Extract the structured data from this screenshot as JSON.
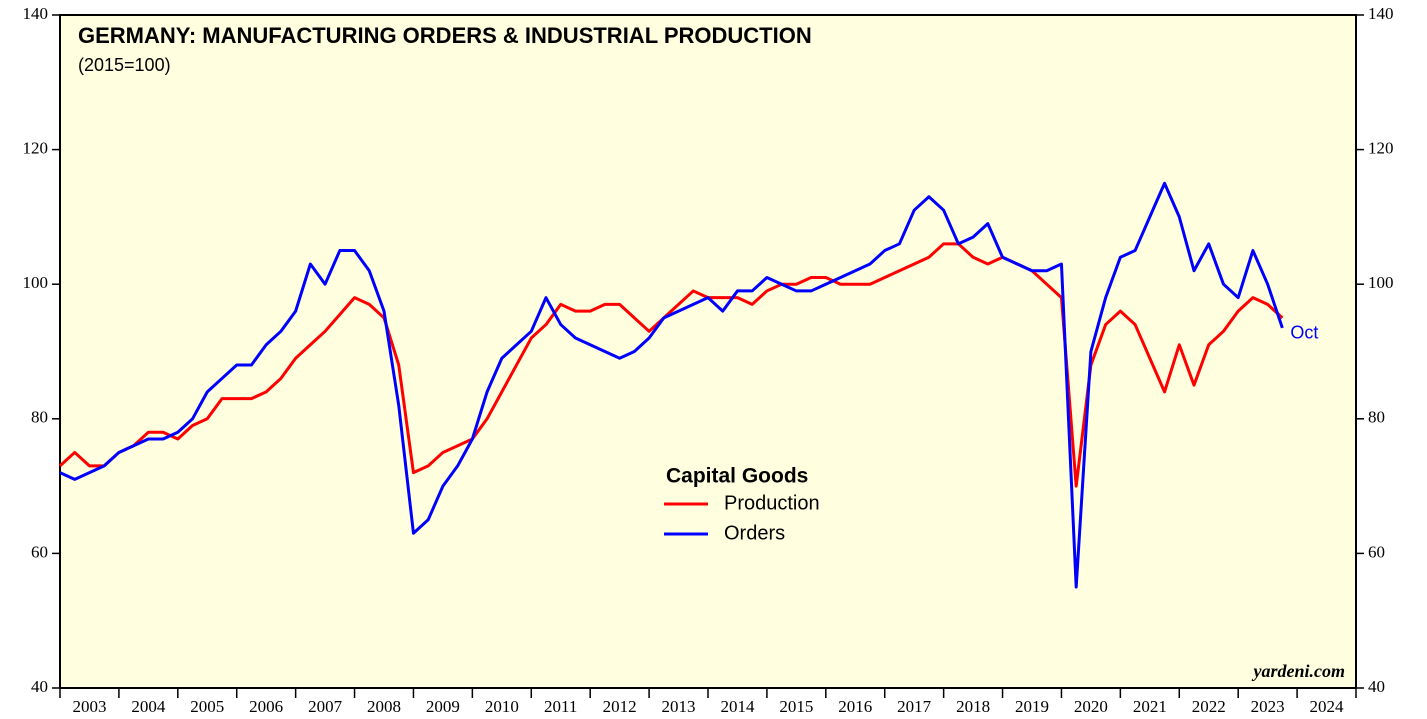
{
  "chart_data": {
    "type": "line",
    "title": "GERMANY: MANUFACTURING ORDERS & INDUSTRIAL PRODUCTION",
    "subtitle": "(2015=100)",
    "legend_title": "Capital Goods",
    "annotation": "Oct",
    "source": "yardeni.com",
    "x": [
      2003,
      2003.25,
      2003.5,
      2003.75,
      2004,
      2004.25,
      2004.5,
      2004.75,
      2005,
      2005.25,
      2005.5,
      2005.75,
      2006,
      2006.25,
      2006.5,
      2006.75,
      2007,
      2007.25,
      2007.5,
      2007.75,
      2008,
      2008.25,
      2008.5,
      2008.75,
      2009,
      2009.25,
      2009.5,
      2009.75,
      2010,
      2010.25,
      2010.5,
      2010.75,
      2011,
      2011.25,
      2011.5,
      2011.75,
      2012,
      2012.25,
      2012.5,
      2012.75,
      2013,
      2013.25,
      2013.5,
      2013.75,
      2014,
      2014.25,
      2014.5,
      2014.75,
      2015,
      2015.25,
      2015.5,
      2015.75,
      2016,
      2016.25,
      2016.5,
      2016.75,
      2017,
      2017.25,
      2017.5,
      2017.75,
      2018,
      2018.25,
      2018.5,
      2018.75,
      2019,
      2019.25,
      2019.5,
      2019.75,
      2020,
      2020.25,
      2020.5,
      2020.75,
      2021,
      2021.25,
      2021.5,
      2021.75,
      2022,
      2022.25,
      2022.5,
      2022.75,
      2023,
      2023.25,
      2023.5,
      2023.75
    ],
    "series": [
      {
        "name": "Production",
        "color": "#ff0000",
        "values": [
          73,
          75,
          73,
          73,
          75,
          76,
          78,
          78,
          77,
          79,
          80,
          83,
          83,
          83,
          84,
          86,
          89,
          91,
          93,
          95.5,
          98,
          97,
          95,
          88,
          72,
          73,
          75,
          76,
          77,
          80,
          84,
          88,
          92,
          94,
          97,
          96,
          96,
          97,
          97,
          95,
          93,
          95,
          97,
          99,
          98,
          98,
          98,
          97,
          99,
          100,
          100,
          101,
          101,
          100,
          100,
          100,
          101,
          102,
          103,
          104,
          106,
          106,
          104,
          103,
          104,
          103,
          102,
          100,
          98,
          70,
          88,
          94,
          96,
          94,
          89,
          84,
          91,
          85,
          91,
          93,
          96,
          98,
          97,
          95
        ]
      },
      {
        "name": "Orders",
        "color": "#0000ff",
        "values": [
          72,
          71,
          72,
          73,
          75,
          76,
          77,
          77,
          78,
          80,
          84,
          86,
          88,
          88,
          91,
          93,
          96,
          103,
          100,
          105,
          105,
          102,
          96,
          82,
          63,
          65,
          70,
          73,
          77,
          84,
          89,
          91,
          93,
          98,
          94,
          92,
          91,
          90,
          89,
          90,
          92,
          95,
          96,
          97,
          98,
          96,
          99,
          99,
          101,
          100,
          99,
          99,
          100,
          101,
          102,
          103,
          105,
          106,
          111,
          113,
          111,
          106,
          107,
          109,
          104,
          103,
          102,
          102,
          103,
          55,
          90,
          98,
          104,
          105,
          110,
          115,
          110,
          102,
          106,
          100,
          98,
          105,
          100,
          93.5
        ]
      }
    ],
    "categories": [
      "2003",
      "2004",
      "2005",
      "2006",
      "2007",
      "2008",
      "2009",
      "2010",
      "2011",
      "2012",
      "2013",
      "2014",
      "2015",
      "2016",
      "2017",
      "2018",
      "2019",
      "2020",
      "2021",
      "2022",
      "2023",
      "2024"
    ],
    "xlim": [
      2003,
      2025
    ],
    "xticks": [
      2003,
      2004,
      2005,
      2006,
      2007,
      2008,
      2009,
      2010,
      2011,
      2012,
      2013,
      2014,
      2015,
      2016,
      2017,
      2018,
      2019,
      2020,
      2021,
      2022,
      2023,
      2024,
      2025
    ],
    "ylim": [
      40,
      140
    ],
    "yticks": [
      40,
      60,
      80,
      100,
      120,
      140
    ]
  }
}
